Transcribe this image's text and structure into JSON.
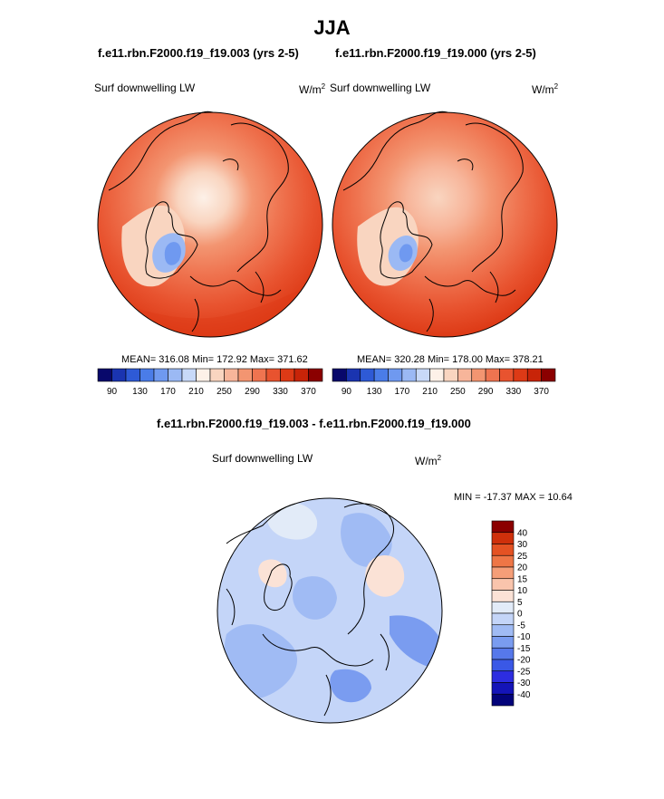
{
  "page": {
    "title": "JJA",
    "diff_title": "f.e11.rbn.F2000.f19_f19.003 - f.e11.rbn.F2000.f19_f19.000"
  },
  "colors": {
    "abs_scale": [
      "#08086b",
      "#1a34b0",
      "#2e5ad6",
      "#4a7ce8",
      "#6f99f0",
      "#9bb9f4",
      "#c8d9f8",
      "#fdf1e8",
      "#f9d5c0",
      "#f7b59a",
      "#f39571",
      "#ef7450",
      "#e8532f",
      "#dd3a16",
      "#c82408",
      "#8b0000"
    ],
    "diff_scale": [
      "#03037a",
      "#1414b8",
      "#2d2de0",
      "#3a58e6",
      "#5678ea",
      "#7a9cf0",
      "#a0bbf4",
      "#c4d5f8",
      "#e2ebf8",
      "#fbe2d6",
      "#f9c4ac",
      "#f59e78",
      "#ee7646",
      "#e45223",
      "#cf300b",
      "#8b0000"
    ],
    "land_outline": "#000000"
  },
  "chart_data": [
    {
      "type": "heatmap",
      "projection": "north polar stereographic",
      "case": "f.e11.rbn.F2000.f19_f19.003 (yrs 2-5)",
      "variable": "Surf downwelling LW",
      "units_base": "W/m",
      "units_exp": "2",
      "mean": "316.08",
      "min": "172.92",
      "max": "371.62",
      "stats_text": "MEAN= 316.08  Min= 172.92  Max= 371.62",
      "colorbar_levels": [
        90,
        110,
        130,
        150,
        170,
        190,
        210,
        230,
        250,
        270,
        290,
        310,
        330,
        350,
        370
      ],
      "colorbar_labels": [
        "90",
        "130",
        "170",
        "210",
        "250",
        "290",
        "330",
        "370"
      ]
    },
    {
      "type": "heatmap",
      "projection": "north polar stereographic",
      "case": "f.e11.rbn.F2000.f19_f19.000 (yrs 2-5)",
      "variable": "Surf downwelling LW",
      "units_base": "W/m",
      "units_exp": "2",
      "mean": "320.28",
      "min": "178.00",
      "max": "378.21",
      "stats_text": "MEAN= 320.28  Min= 178.00  Max= 378.21",
      "colorbar_levels": [
        90,
        110,
        130,
        150,
        170,
        190,
        210,
        230,
        250,
        270,
        290,
        310,
        330,
        350,
        370
      ],
      "colorbar_labels": [
        "90",
        "130",
        "170",
        "210",
        "250",
        "290",
        "330",
        "370"
      ]
    },
    {
      "type": "heatmap",
      "projection": "north polar stereographic",
      "case": "f.e11.rbn.F2000.f19_f19.003 - f.e11.rbn.F2000.f19_f19.000",
      "variable": "Surf downwelling LW",
      "units_base": "W/m",
      "units_exp": "2",
      "min": "-17.37",
      "max": "10.64",
      "stats_text": "MIN = -17.37 MAX =  10.64",
      "colorbar_labels": [
        "40",
        "30",
        "25",
        "20",
        "15",
        "10",
        "5",
        "0",
        "-5",
        "-10",
        "-15",
        "-20",
        "-25",
        "-30",
        "-40"
      ]
    }
  ]
}
